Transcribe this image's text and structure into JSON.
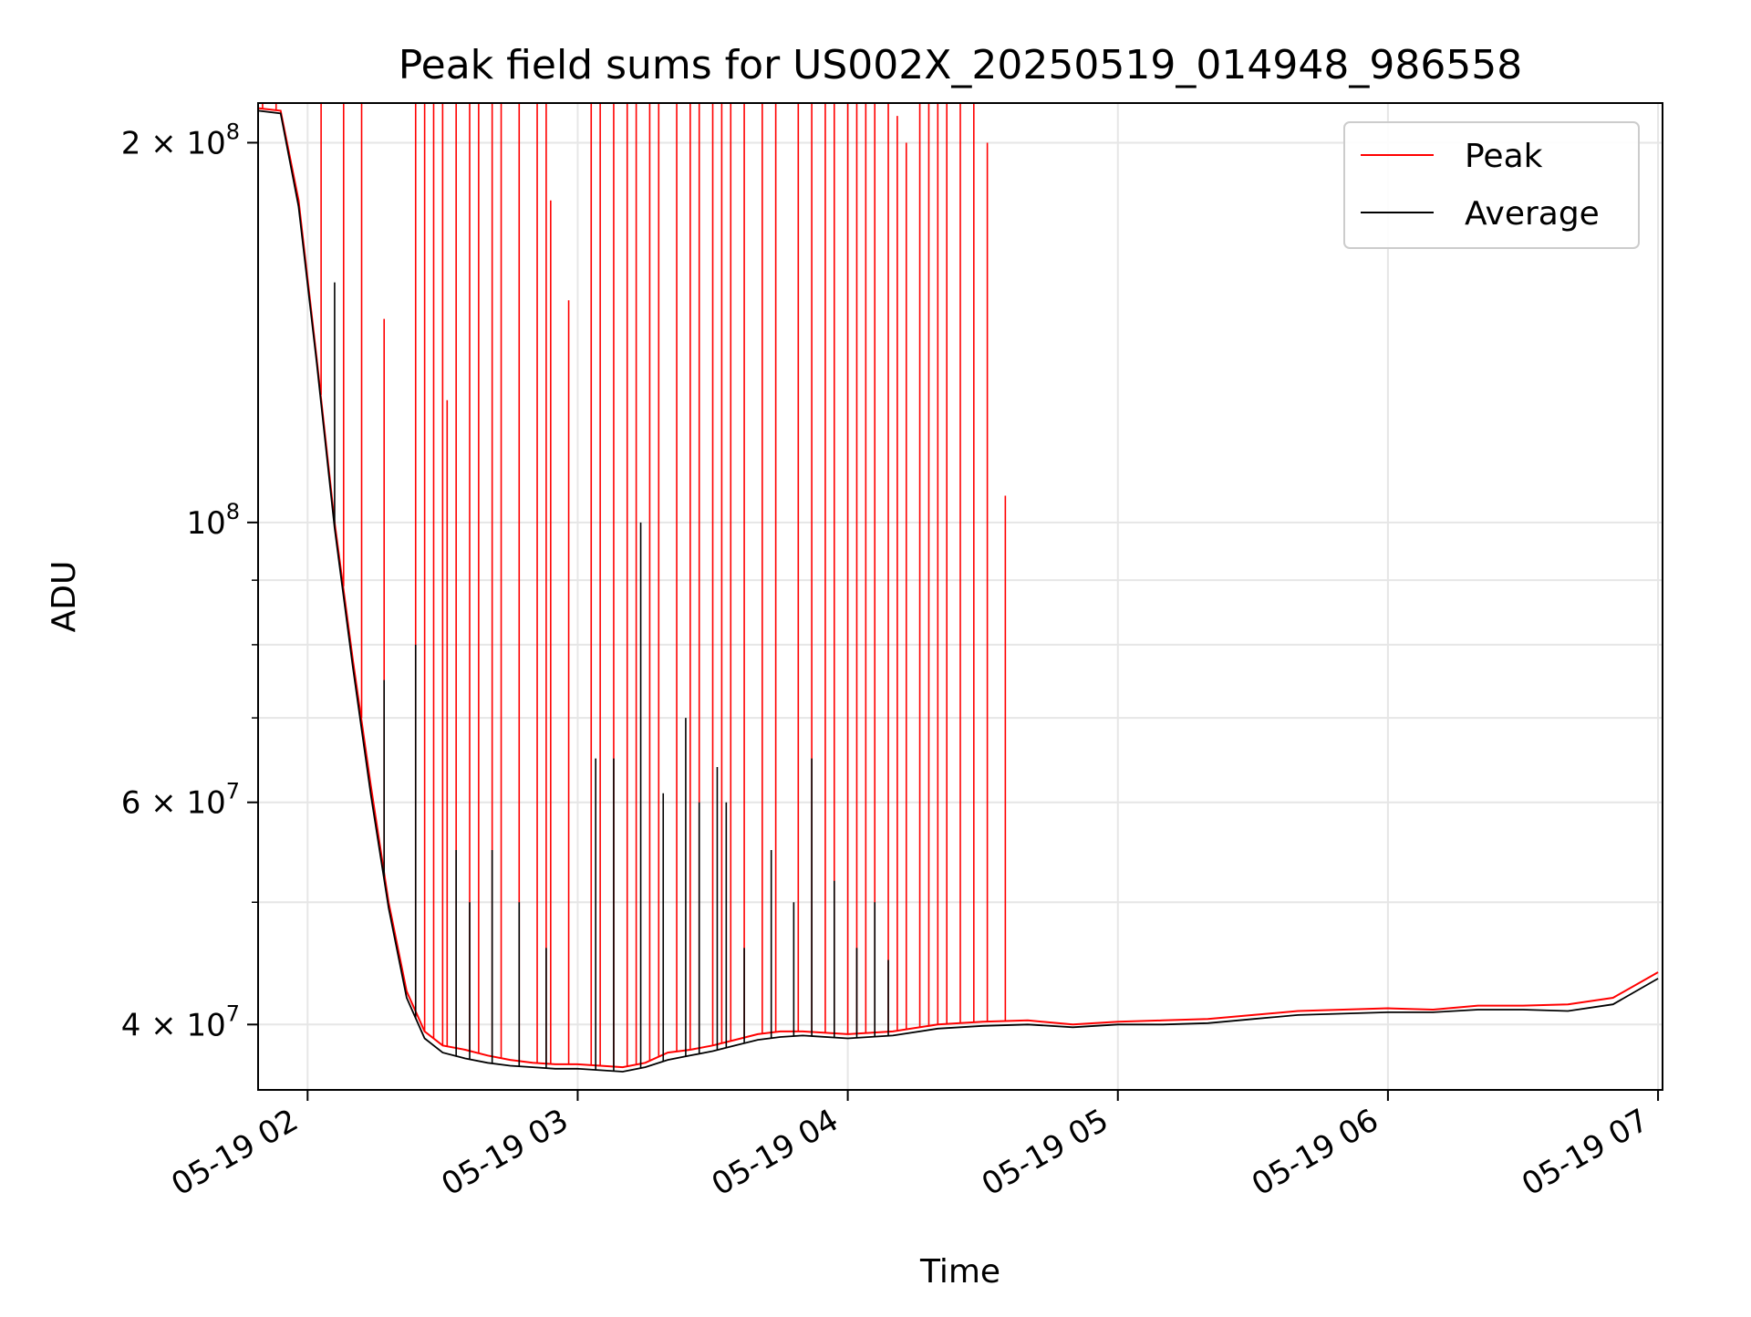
{
  "chart_data": {
    "type": "line",
    "title": "Peak field sums for US002X_20250519_014948_986558",
    "xlabel": "Time",
    "ylabel": "ADU",
    "yscale": "log",
    "grid": true,
    "legend_placement": "top-right",
    "xlim": [
      "2025-05-19 01:49",
      "2025-05-19 07:01"
    ],
    "ylim": [
      35500000,
      215000000
    ],
    "x_ticks": [
      {
        "value": "2025-05-19 02:00",
        "label": "05-19 02"
      },
      {
        "value": "2025-05-19 03:00",
        "label": "05-19 03"
      },
      {
        "value": "2025-05-19 04:00",
        "label": "05-19 04"
      },
      {
        "value": "2025-05-19 05:00",
        "label": "05-19 05"
      },
      {
        "value": "2025-05-19 06:00",
        "label": "05-19 06"
      },
      {
        "value": "2025-05-19 07:00",
        "label": "05-19 07"
      }
    ],
    "y_ticks": [
      {
        "value": 200000000,
        "label": "2 × 10",
        "sup": "8"
      },
      {
        "value": 100000000,
        "label": "10",
        "sup": "8"
      },
      {
        "value": 60000000,
        "label": "6 × 10",
        "sup": "7"
      },
      {
        "value": 40000000,
        "label": "4 × 10",
        "sup": "7"
      }
    ],
    "y_minor_ticks": [
      50000000,
      70000000,
      80000000,
      90000000
    ],
    "series": [
      {
        "name": "Peak",
        "color": "#ff0000",
        "x": [
          "2025-05-19 01:49",
          "2025-05-19 01:54",
          "2025-05-19 01:58",
          "2025-05-19 02:02",
          "2025-05-19 02:06",
          "2025-05-19 02:10",
          "2025-05-19 02:14",
          "2025-05-19 02:18",
          "2025-05-19 02:22",
          "2025-05-19 02:26",
          "2025-05-19 02:30",
          "2025-05-19 02:35",
          "2025-05-19 02:40",
          "2025-05-19 02:45",
          "2025-05-19 02:50",
          "2025-05-19 02:55",
          "2025-05-19 03:00",
          "2025-05-19 03:05",
          "2025-05-19 03:10",
          "2025-05-19 03:15",
          "2025-05-19 03:20",
          "2025-05-19 03:25",
          "2025-05-19 03:30",
          "2025-05-19 03:35",
          "2025-05-19 03:40",
          "2025-05-19 03:45",
          "2025-05-19 03:50",
          "2025-05-19 04:00",
          "2025-05-19 04:10",
          "2025-05-19 04:20",
          "2025-05-19 04:30",
          "2025-05-19 04:40",
          "2025-05-19 04:50",
          "2025-05-19 05:00",
          "2025-05-19 05:10",
          "2025-05-19 05:20",
          "2025-05-19 05:30",
          "2025-05-19 05:40",
          "2025-05-19 05:50",
          "2025-05-19 06:00",
          "2025-05-19 06:10",
          "2025-05-19 06:20",
          "2025-05-19 06:30",
          "2025-05-19 06:40",
          "2025-05-19 06:50",
          "2025-05-19 07:00"
        ],
        "y": [
          213000000,
          212000000,
          180000000,
          135000000,
          100000000,
          78000000,
          62000000,
          50000000,
          42500000,
          39500000,
          38500000,
          38200000,
          37800000,
          37500000,
          37300000,
          37200000,
          37200000,
          37100000,
          37000000,
          37300000,
          38000000,
          38200000,
          38500000,
          38900000,
          39300000,
          39500000,
          39500000,
          39300000,
          39500000,
          40000000,
          40200000,
          40300000,
          40000000,
          40200000,
          40300000,
          40400000,
          40700000,
          41000000,
          41100000,
          41200000,
          41100000,
          41400000,
          41400000,
          41500000,
          42000000,
          44000000
        ],
        "spikes": [
          {
            "x": "2025-05-19 01:50",
            "y": 215000000
          },
          {
            "x": "2025-05-19 01:53",
            "y": 215000000
          },
          {
            "x": "2025-05-19 02:03",
            "y": 215000000
          },
          {
            "x": "2025-05-19 02:08",
            "y": 215000000
          },
          {
            "x": "2025-05-19 02:12",
            "y": 215000000
          },
          {
            "x": "2025-05-19 02:17",
            "y": 145000000
          },
          {
            "x": "2025-05-19 02:24",
            "y": 215000000
          },
          {
            "x": "2025-05-19 02:26",
            "y": 215000000
          },
          {
            "x": "2025-05-19 02:28",
            "y": 215000000
          },
          {
            "x": "2025-05-19 02:30",
            "y": 215000000
          },
          {
            "x": "2025-05-19 02:31",
            "y": 125000000
          },
          {
            "x": "2025-05-19 02:33",
            "y": 215000000
          },
          {
            "x": "2025-05-19 02:36",
            "y": 215000000
          },
          {
            "x": "2025-05-19 02:38",
            "y": 215000000
          },
          {
            "x": "2025-05-19 02:41",
            "y": 215000000
          },
          {
            "x": "2025-05-19 02:43",
            "y": 215000000
          },
          {
            "x": "2025-05-19 02:47",
            "y": 215000000
          },
          {
            "x": "2025-05-19 02:51",
            "y": 215000000
          },
          {
            "x": "2025-05-19 02:53",
            "y": 215000000
          },
          {
            "x": "2025-05-19 02:54",
            "y": 180000000
          },
          {
            "x": "2025-05-19 02:58",
            "y": 150000000
          },
          {
            "x": "2025-05-19 03:03",
            "y": 215000000
          },
          {
            "x": "2025-05-19 03:05",
            "y": 215000000
          },
          {
            "x": "2025-05-19 03:08",
            "y": 215000000
          },
          {
            "x": "2025-05-19 03:11",
            "y": 215000000
          },
          {
            "x": "2025-05-19 03:13",
            "y": 215000000
          },
          {
            "x": "2025-05-19 03:16",
            "y": 215000000
          },
          {
            "x": "2025-05-19 03:18",
            "y": 215000000
          },
          {
            "x": "2025-05-19 03:22",
            "y": 215000000
          },
          {
            "x": "2025-05-19 03:25",
            "y": 215000000
          },
          {
            "x": "2025-05-19 03:27",
            "y": 215000000
          },
          {
            "x": "2025-05-19 03:30",
            "y": 215000000
          },
          {
            "x": "2025-05-19 03:32",
            "y": 215000000
          },
          {
            "x": "2025-05-19 03:34",
            "y": 215000000
          },
          {
            "x": "2025-05-19 03:37",
            "y": 215000000
          },
          {
            "x": "2025-05-19 03:41",
            "y": 215000000
          },
          {
            "x": "2025-05-19 03:44",
            "y": 215000000
          },
          {
            "x": "2025-05-19 03:49",
            "y": 215000000
          },
          {
            "x": "2025-05-19 03:52",
            "y": 215000000
          },
          {
            "x": "2025-05-19 03:55",
            "y": 215000000
          },
          {
            "x": "2025-05-19 03:57",
            "y": 215000000
          },
          {
            "x": "2025-05-19 04:00",
            "y": 215000000
          },
          {
            "x": "2025-05-19 04:02",
            "y": 215000000
          },
          {
            "x": "2025-05-19 04:04",
            "y": 215000000
          },
          {
            "x": "2025-05-19 04:06",
            "y": 215000000
          },
          {
            "x": "2025-05-19 04:09",
            "y": 215000000
          },
          {
            "x": "2025-05-19 04:11",
            "y": 210000000
          },
          {
            "x": "2025-05-19 04:13",
            "y": 200000000
          },
          {
            "x": "2025-05-19 04:16",
            "y": 215000000
          },
          {
            "x": "2025-05-19 04:18",
            "y": 215000000
          },
          {
            "x": "2025-05-19 04:20",
            "y": 215000000
          },
          {
            "x": "2025-05-19 04:22",
            "y": 215000000
          },
          {
            "x": "2025-05-19 04:25",
            "y": 215000000
          },
          {
            "x": "2025-05-19 04:28",
            "y": 215000000
          },
          {
            "x": "2025-05-19 04:31",
            "y": 200000000
          },
          {
            "x": "2025-05-19 04:35",
            "y": 105000000
          }
        ]
      },
      {
        "name": "Average",
        "color": "#000000",
        "x": [
          "2025-05-19 01:49",
          "2025-05-19 01:54",
          "2025-05-19 01:58",
          "2025-05-19 02:02",
          "2025-05-19 02:06",
          "2025-05-19 02:10",
          "2025-05-19 02:14",
          "2025-05-19 02:18",
          "2025-05-19 02:22",
          "2025-05-19 02:26",
          "2025-05-19 02:30",
          "2025-05-19 02:35",
          "2025-05-19 02:40",
          "2025-05-19 02:45",
          "2025-05-19 02:50",
          "2025-05-19 02:55",
          "2025-05-19 03:00",
          "2025-05-19 03:05",
          "2025-05-19 03:10",
          "2025-05-19 03:15",
          "2025-05-19 03:20",
          "2025-05-19 03:25",
          "2025-05-19 03:30",
          "2025-05-19 03:35",
          "2025-05-19 03:40",
          "2025-05-19 03:45",
          "2025-05-19 03:50",
          "2025-05-19 04:00",
          "2025-05-19 04:10",
          "2025-05-19 04:20",
          "2025-05-19 04:30",
          "2025-05-19 04:40",
          "2025-05-19 04:50",
          "2025-05-19 05:00",
          "2025-05-19 05:10",
          "2025-05-19 05:20",
          "2025-05-19 05:30",
          "2025-05-19 05:40",
          "2025-05-19 05:50",
          "2025-05-19 06:00",
          "2025-05-19 06:10",
          "2025-05-19 06:20",
          "2025-05-19 06:30",
          "2025-05-19 06:40",
          "2025-05-19 06:50",
          "2025-05-19 07:00"
        ],
        "y": [
          212000000,
          211000000,
          178000000,
          134000000,
          99000000,
          77000000,
          61000000,
          49500000,
          42000000,
          39000000,
          38000000,
          37600000,
          37300000,
          37100000,
          37000000,
          36900000,
          36900000,
          36800000,
          36700000,
          37000000,
          37500000,
          37800000,
          38100000,
          38500000,
          38900000,
          39100000,
          39200000,
          39000000,
          39200000,
          39700000,
          39900000,
          40000000,
          39800000,
          40000000,
          40000000,
          40100000,
          40400000,
          40700000,
          40800000,
          40900000,
          40900000,
          41100000,
          41100000,
          41000000,
          41500000,
          43500000
        ],
        "spikes": [
          {
            "x": "2025-05-19 02:06",
            "y": 155000000
          },
          {
            "x": "2025-05-19 02:17",
            "y": 75000000
          },
          {
            "x": "2025-05-19 02:24",
            "y": 80000000
          },
          {
            "x": "2025-05-19 02:33",
            "y": 55000000
          },
          {
            "x": "2025-05-19 02:36",
            "y": 50000000
          },
          {
            "x": "2025-05-19 02:41",
            "y": 55000000
          },
          {
            "x": "2025-05-19 02:47",
            "y": 50000000
          },
          {
            "x": "2025-05-19 02:53",
            "y": 46000000
          },
          {
            "x": "2025-05-19 03:04",
            "y": 65000000
          },
          {
            "x": "2025-05-19 03:08",
            "y": 65000000
          },
          {
            "x": "2025-05-19 03:14",
            "y": 100000000
          },
          {
            "x": "2025-05-19 03:19",
            "y": 61000000
          },
          {
            "x": "2025-05-19 03:24",
            "y": 70000000
          },
          {
            "x": "2025-05-19 03:27",
            "y": 60000000
          },
          {
            "x": "2025-05-19 03:31",
            "y": 64000000
          },
          {
            "x": "2025-05-19 03:33",
            "y": 60000000
          },
          {
            "x": "2025-05-19 03:37",
            "y": 46000000
          },
          {
            "x": "2025-05-19 03:43",
            "y": 55000000
          },
          {
            "x": "2025-05-19 03:48",
            "y": 50000000
          },
          {
            "x": "2025-05-19 03:52",
            "y": 65000000
          },
          {
            "x": "2025-05-19 03:57",
            "y": 52000000
          },
          {
            "x": "2025-05-19 04:02",
            "y": 46000000
          },
          {
            "x": "2025-05-19 04:06",
            "y": 50000000
          },
          {
            "x": "2025-05-19 04:09",
            "y": 45000000
          }
        ]
      }
    ]
  }
}
